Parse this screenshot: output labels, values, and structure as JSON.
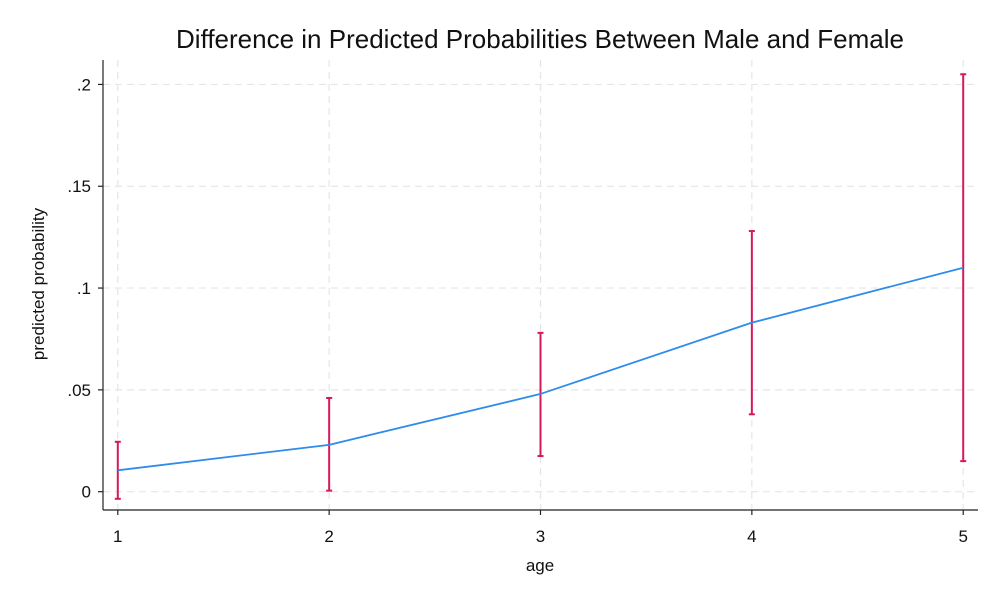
{
  "chart_data": {
    "type": "line",
    "title": "Difference in Predicted Probabilities Between Male and Female",
    "xlabel": "age",
    "ylabel": "predicted probability",
    "x": [
      1,
      2,
      3,
      4,
      5
    ],
    "x_tick_labels": [
      "1",
      "2",
      "3",
      "4",
      "5"
    ],
    "xlim": [
      0.93,
      5.07
    ],
    "ylim": [
      -0.009,
      0.212
    ],
    "y_ticks": [
      0,
      0.05,
      0.1,
      0.15,
      0.2
    ],
    "y_tick_labels": [
      "0",
      ".05",
      ".1",
      ".15",
      ".2"
    ],
    "grid": true,
    "legend": "none",
    "series": [
      {
        "values": [
          0.0105,
          0.023,
          0.048,
          0.083,
          0.11
        ],
        "lower": [
          -0.0035,
          0.0005,
          0.0175,
          0.038,
          0.015
        ],
        "upper": [
          0.0245,
          0.046,
          0.078,
          0.128,
          0.205
        ],
        "line_color": "#2e8cea",
        "error_bar_color": "#d6195a"
      }
    ]
  }
}
